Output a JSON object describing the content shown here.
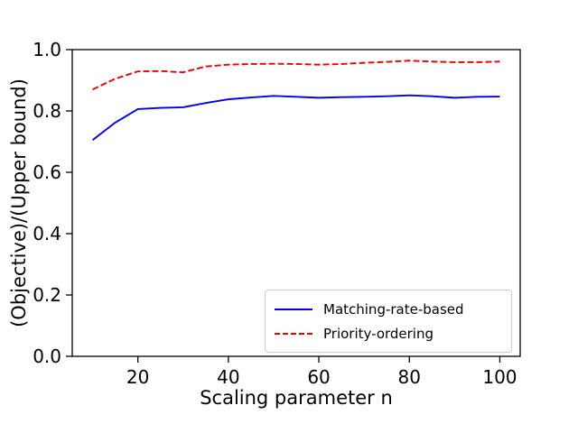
{
  "figure": {
    "background": "#ffffff",
    "frame_color": "#000000"
  },
  "chart_data": {
    "type": "line",
    "title": "",
    "xlabel": "Scaling parameter n",
    "ylabel": "(Objective)/(Upper bound)",
    "x": [
      10,
      15,
      20,
      25,
      30,
      35,
      40,
      45,
      50,
      55,
      60,
      65,
      70,
      75,
      80,
      85,
      90,
      95,
      100
    ],
    "series": [
      {
        "name": "Matching-rate-based",
        "color": "#0000ee",
        "style": "solid",
        "values": [
          0.705,
          0.762,
          0.806,
          0.81,
          0.812,
          0.826,
          0.838,
          0.844,
          0.849,
          0.846,
          0.843,
          0.845,
          0.846,
          0.848,
          0.851,
          0.848,
          0.843,
          0.846,
          0.847
        ]
      },
      {
        "name": "Priority-ordering",
        "color": "#ee0000",
        "style": "dashed",
        "values": [
          0.87,
          0.905,
          0.929,
          0.93,
          0.926,
          0.945,
          0.951,
          0.953,
          0.954,
          0.953,
          0.951,
          0.953,
          0.957,
          0.96,
          0.964,
          0.961,
          0.959,
          0.959,
          0.961
        ]
      }
    ],
    "xlim": [
      5.5,
      104.5
    ],
    "ylim": [
      0.0,
      1.0
    ],
    "x_ticks": [
      20,
      40,
      60,
      80,
      100
    ],
    "y_ticks": [
      0.0,
      0.2,
      0.4,
      0.6,
      0.8,
      1.0
    ],
    "y_tick_format_decimals": 1,
    "grid": false,
    "legend_position": "lower right"
  }
}
